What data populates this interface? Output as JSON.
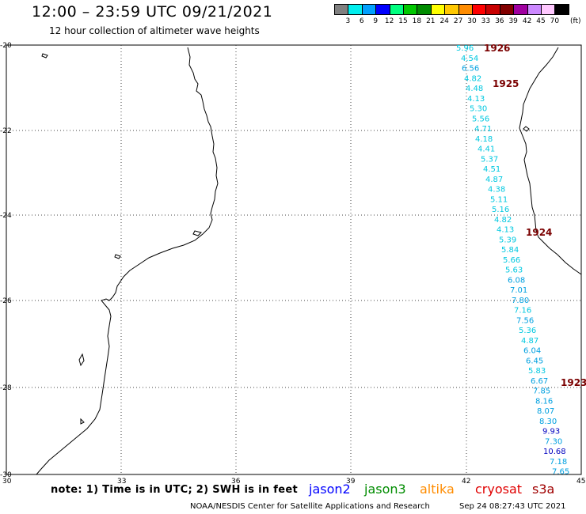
{
  "header": {
    "title": "12:00 – 23:59 UTC 09/21/2021",
    "subtitle": "12 hour collection of altimeter wave heights"
  },
  "colorbar": {
    "unit": "(ft)",
    "bins": [
      {
        "label": "3",
        "color": "#808080"
      },
      {
        "label": "6",
        "color": "#00eeee"
      },
      {
        "label": "9",
        "color": "#00a0ff"
      },
      {
        "label": "12",
        "color": "#0000ff"
      },
      {
        "label": "15",
        "color": "#00ff7f"
      },
      {
        "label": "18",
        "color": "#00c800"
      },
      {
        "label": "21",
        "color": "#008c00"
      },
      {
        "label": "24",
        "color": "#ffff00"
      },
      {
        "label": "27",
        "color": "#ffc800"
      },
      {
        "label": "30",
        "color": "#ff8c00"
      },
      {
        "label": "33",
        "color": "#ff0000"
      },
      {
        "label": "36",
        "color": "#c80000"
      },
      {
        "label": "39",
        "color": "#820000"
      },
      {
        "label": "42",
        "color": "#a000a0"
      },
      {
        "label": "45",
        "color": "#cc88ff"
      },
      {
        "label": "70",
        "color": "#ffc8ff"
      },
      {
        "label": "",
        "color": "#000000"
      }
    ]
  },
  "map": {
    "lat_labels": [
      "-20",
      "-22",
      "-24",
      "-26",
      "-28",
      "-30"
    ],
    "lon_labels": [
      "30",
      "33",
      "36",
      "39",
      "42",
      "45"
    ],
    "pass_labels": [
      "1926",
      "1925",
      "1924",
      "1923"
    ],
    "swh_labels": [
      {
        "text": "5.96",
        "color": "#00c8e0"
      },
      {
        "text": "4.54",
        "color": "#00c8e0"
      },
      {
        "text": "6.56",
        "color": "#00a0e0"
      },
      {
        "text": "4.82",
        "color": "#00c8e0"
      },
      {
        "text": "4.48",
        "color": "#00c8e0"
      },
      {
        "text": "4.13",
        "color": "#00c8e0"
      },
      {
        "text": "5.30",
        "color": "#00c8e0"
      },
      {
        "text": "5.56",
        "color": "#00c8e0"
      },
      {
        "text": "4.71",
        "color": "#00c8e0"
      },
      {
        "text": "4.18",
        "color": "#00c8e0"
      },
      {
        "text": "4.41",
        "color": "#00c8e0"
      },
      {
        "text": "5.37",
        "color": "#00c8e0"
      },
      {
        "text": "4.51",
        "color": "#00c8e0"
      },
      {
        "text": "4.87",
        "color": "#00c8e0"
      },
      {
        "text": "4.38",
        "color": "#00c8e0"
      },
      {
        "text": "5.11",
        "color": "#00c8e0"
      },
      {
        "text": "5.16",
        "color": "#00c8e0"
      },
      {
        "text": "4.82",
        "color": "#00c8e0"
      },
      {
        "text": "4.13",
        "color": "#00c8e0"
      },
      {
        "text": "5.39",
        "color": "#00c8e0"
      },
      {
        "text": "5.84",
        "color": "#00c8e0"
      },
      {
        "text": "5.66",
        "color": "#00c8e0"
      },
      {
        "text": "5.63",
        "color": "#00c8e0"
      },
      {
        "text": "6.08",
        "color": "#00a0e0"
      },
      {
        "text": "7.01",
        "color": "#00a0e0"
      },
      {
        "text": "7.80",
        "color": "#00a0e0"
      },
      {
        "text": "7.16",
        "color": "#00c8e0"
      },
      {
        "text": "7.56",
        "color": "#00a0e0"
      },
      {
        "text": "5.36",
        "color": "#00c8e0"
      },
      {
        "text": "4.87",
        "color": "#00c8e0"
      },
      {
        "text": "6.04",
        "color": "#00a0e0"
      },
      {
        "text": "6.45",
        "color": "#00a0e0"
      },
      {
        "text": "5.83",
        "color": "#00c8e0"
      },
      {
        "text": "6.67",
        "color": "#00a0e0"
      },
      {
        "text": "7.85",
        "color": "#00a0e0"
      },
      {
        "text": "8.16",
        "color": "#00a0e0"
      },
      {
        "text": "8.07",
        "color": "#00a0e0"
      },
      {
        "text": "8.30",
        "color": "#00a0e0"
      },
      {
        "text": "9.93",
        "color": "#0000c0"
      },
      {
        "text": "7.30",
        "color": "#00a0e0"
      },
      {
        "text": "10.68",
        "color": "#0000c0"
      },
      {
        "text": "7.18",
        "color": "#00a0e0"
      },
      {
        "text": "7.65",
        "color": "#00a0e0"
      }
    ]
  },
  "legend": {
    "note": "note: 1) Time is in UTC; 2) SWH is in feet",
    "satellites": [
      {
        "name": "jason2",
        "color": "#0000ff"
      },
      {
        "name": "jason3",
        "color": "#008c00"
      },
      {
        "name": "altika",
        "color": "#ff8c00"
      },
      {
        "name": "cryosat",
        "color": "#e00000"
      },
      {
        "name": "s3a",
        "color": "#a00000"
      }
    ]
  },
  "footer": {
    "source": "NOAA/NESDIS Center for Satellite Applications and Research",
    "timestamp": "Sep 24 08:27:43 UTC 2021"
  }
}
